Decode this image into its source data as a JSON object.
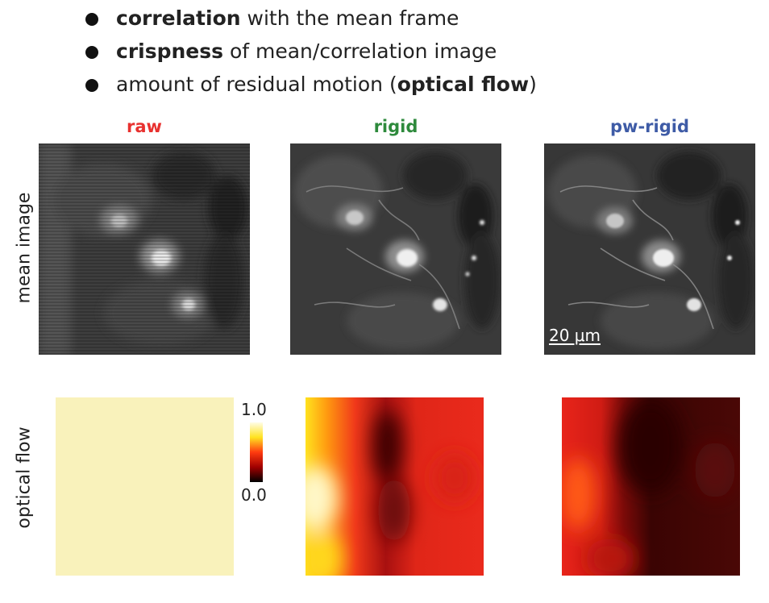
{
  "bullets": [
    {
      "bold": "correlation",
      "rest": " with the mean frame",
      "prefix": "",
      "suffix": ""
    },
    {
      "bold": "crispness",
      "rest": " of mean/correlation image",
      "prefix": "",
      "suffix": ""
    },
    {
      "prefix": "amount of residual motion (",
      "bold": "optical flow",
      "suffix": ")",
      "rest": ""
    }
  ],
  "columns": [
    {
      "label": "raw",
      "color": "#e8312f"
    },
    {
      "label": "rigid",
      "color": "#2e8a3c"
    },
    {
      "label": "pw-rigid",
      "color": "#3e5ba6"
    }
  ],
  "rows": {
    "mean_image": "mean image",
    "optical_flow": "optical flow"
  },
  "scalebar": "20 μm",
  "colorbar": {
    "max": "1.0",
    "min": "0.0"
  },
  "colors": {
    "raw_flow": "#f9f2bb"
  }
}
